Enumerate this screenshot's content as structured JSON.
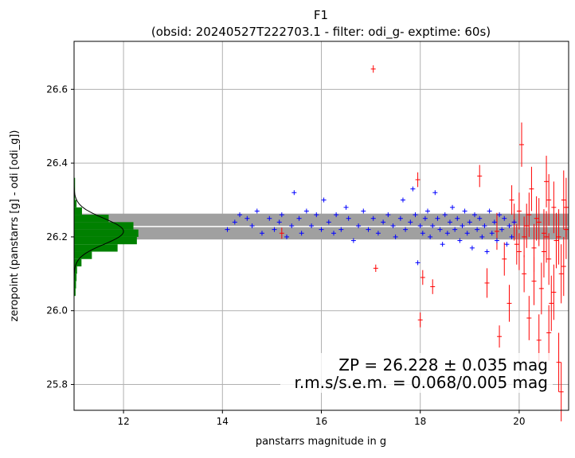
{
  "chart_data": {
    "type": "scatter",
    "title": "F1",
    "subtitle": "(obsid: 20240527T222703.1 - filter: odi_g- exptime: 60s)",
    "xlabel": "panstarrs magnitude in g",
    "ylabel": "zeropoint (panstarrs [g] - odi [odi_g])",
    "xlim": [
      11.0,
      21.0
    ],
    "ylim": [
      25.73,
      26.73
    ],
    "xticks": [
      12,
      14,
      16,
      18,
      20
    ],
    "yticks": [
      25.8,
      26.0,
      26.2,
      26.4,
      26.6
    ],
    "grid": true,
    "zeropoint": 26.228,
    "zeropoint_band": [
      26.193,
      26.263
    ],
    "annotation": {
      "line1": "ZP = 26.228 ± 0.035 mag",
      "line2": "r.m.s/s.e.m. = 0.068/0.005 mag"
    },
    "histogram": {
      "orientation": "horizontal",
      "color": "#008000",
      "note": "bar extent is given in x-axis magnitude units starting at the left edge",
      "bins": [
        {
          "y0": 26.04,
          "y1": 26.06,
          "extent": 11.03
        },
        {
          "y0": 26.06,
          "y1": 26.08,
          "extent": 11.04
        },
        {
          "y0": 26.08,
          "y1": 26.1,
          "extent": 11.05
        },
        {
          "y0": 26.1,
          "y1": 26.12,
          "extent": 11.06
        },
        {
          "y0": 26.12,
          "y1": 26.14,
          "extent": 11.15
        },
        {
          "y0": 26.14,
          "y1": 26.16,
          "extent": 11.36
        },
        {
          "y0": 26.16,
          "y1": 26.18,
          "extent": 11.88
        },
        {
          "y0": 26.18,
          "y1": 26.2,
          "extent": 12.27
        },
        {
          "y0": 26.2,
          "y1": 26.22,
          "extent": 12.3
        },
        {
          "y0": 26.22,
          "y1": 26.24,
          "extent": 12.2
        },
        {
          "y0": 26.24,
          "y1": 26.26,
          "extent": 11.7
        },
        {
          "y0": 26.26,
          "y1": 26.28,
          "extent": 11.16
        },
        {
          "y0": 26.28,
          "y1": 26.3,
          "extent": 11.05
        },
        {
          "y0": 26.3,
          "y1": 26.32,
          "extent": 11.02
        },
        {
          "y0": 26.32,
          "y1": 26.34,
          "extent": 11.02
        },
        {
          "y0": 26.34,
          "y1": 26.36,
          "extent": 11.02
        }
      ],
      "gaussian": {
        "mean": 26.215,
        "sigma": 0.035,
        "peak": 12.0
      }
    },
    "series": [
      {
        "color": "#0000ff",
        "marker": "plus",
        "points": [
          [
            14.1,
            26.22
          ],
          [
            14.25,
            26.24
          ],
          [
            14.35,
            26.26
          ],
          [
            14.5,
            26.25
          ],
          [
            14.6,
            26.23
          ],
          [
            14.7,
            26.27
          ],
          [
            14.8,
            26.21
          ],
          [
            14.95,
            26.25
          ],
          [
            15.05,
            26.22
          ],
          [
            15.15,
            26.24
          ],
          [
            15.2,
            26.26
          ],
          [
            15.3,
            26.2
          ],
          [
            15.4,
            26.23
          ],
          [
            15.45,
            26.32
          ],
          [
            15.55,
            26.25
          ],
          [
            15.6,
            26.21
          ],
          [
            15.7,
            26.27
          ],
          [
            15.8,
            26.23
          ],
          [
            15.9,
            26.26
          ],
          [
            16.0,
            26.22
          ],
          [
            16.05,
            26.3
          ],
          [
            16.15,
            26.24
          ],
          [
            16.25,
            26.21
          ],
          [
            16.3,
            26.26
          ],
          [
            16.4,
            26.22
          ],
          [
            16.5,
            26.28
          ],
          [
            16.55,
            26.25
          ],
          [
            16.65,
            26.19
          ],
          [
            16.75,
            26.23
          ],
          [
            16.85,
            26.27
          ],
          [
            16.95,
            26.22
          ],
          [
            17.05,
            26.25
          ],
          [
            17.15,
            26.21
          ],
          [
            17.25,
            26.24
          ],
          [
            17.35,
            26.26
          ],
          [
            17.45,
            26.23
          ],
          [
            17.5,
            26.2
          ],
          [
            17.6,
            26.25
          ],
          [
            17.65,
            26.3
          ],
          [
            17.7,
            26.22
          ],
          [
            17.8,
            26.24
          ],
          [
            17.85,
            26.33
          ],
          [
            17.9,
            26.26
          ],
          [
            17.95,
            26.13
          ],
          [
            18.0,
            26.23
          ],
          [
            18.05,
            26.21
          ],
          [
            18.1,
            26.25
          ],
          [
            18.15,
            26.27
          ],
          [
            18.2,
            26.2
          ],
          [
            18.25,
            26.23
          ],
          [
            18.3,
            26.32
          ],
          [
            18.35,
            26.25
          ],
          [
            18.4,
            26.22
          ],
          [
            18.45,
            26.18
          ],
          [
            18.5,
            26.26
          ],
          [
            18.55,
            26.21
          ],
          [
            18.6,
            26.24
          ],
          [
            18.65,
            26.28
          ],
          [
            18.7,
            26.22
          ],
          [
            18.75,
            26.25
          ],
          [
            18.8,
            26.19
          ],
          [
            18.85,
            26.23
          ],
          [
            18.9,
            26.27
          ],
          [
            18.95,
            26.21
          ],
          [
            19.0,
            26.24
          ],
          [
            19.05,
            26.17
          ],
          [
            19.1,
            26.26
          ],
          [
            19.15,
            26.22
          ],
          [
            19.2,
            26.25
          ],
          [
            19.25,
            26.2
          ],
          [
            19.3,
            26.23
          ],
          [
            19.35,
            26.16
          ],
          [
            19.4,
            26.27
          ],
          [
            19.45,
            26.21
          ],
          [
            19.5,
            26.24
          ],
          [
            19.55,
            26.19
          ],
          [
            19.6,
            26.26
          ],
          [
            19.65,
            26.22
          ],
          [
            19.7,
            26.25
          ],
          [
            19.75,
            26.18
          ],
          [
            19.8,
            26.23
          ],
          [
            19.85,
            26.2
          ],
          [
            19.9,
            26.24
          ]
        ]
      },
      {
        "color": "#ff0000",
        "marker": "plus-errorbar",
        "points": [
          [
            17.05,
            26.655,
            0.01
          ],
          [
            17.1,
            26.115,
            0.01
          ],
          [
            15.2,
            26.21,
            0.015
          ],
          [
            17.95,
            26.355,
            0.02
          ],
          [
            18.05,
            26.09,
            0.02
          ],
          [
            18.25,
            26.065,
            0.02
          ],
          [
            18.0,
            25.975,
            0.02
          ],
          [
            19.2,
            26.365,
            0.03
          ],
          [
            19.35,
            26.075,
            0.04
          ],
          [
            19.55,
            26.215,
            0.05
          ],
          [
            19.6,
            25.93,
            0.03
          ],
          [
            19.7,
            26.14,
            0.045
          ],
          [
            19.8,
            26.02,
            0.05
          ],
          [
            19.85,
            26.3,
            0.04
          ],
          [
            19.95,
            26.18,
            0.055
          ],
          [
            20.0,
            26.27,
            0.05
          ],
          [
            20.05,
            26.45,
            0.06
          ],
          [
            20.1,
            26.1,
            0.05
          ],
          [
            20.15,
            26.23,
            0.06
          ],
          [
            20.2,
            25.98,
            0.06
          ],
          [
            20.25,
            26.33,
            0.06
          ],
          [
            20.3,
            26.17,
            0.065
          ],
          [
            20.35,
            26.25,
            0.06
          ],
          [
            20.4,
            25.92,
            0.07
          ],
          [
            20.45,
            26.06,
            0.07
          ],
          [
            20.5,
            26.21,
            0.065
          ],
          [
            20.55,
            26.35,
            0.07
          ],
          [
            20.6,
            26.14,
            0.07
          ],
          [
            20.65,
            26.02,
            0.075
          ],
          [
            20.7,
            26.28,
            0.07
          ],
          [
            20.75,
            26.19,
            0.075
          ],
          [
            20.8,
            25.86,
            0.08
          ],
          [
            20.85,
            26.1,
            0.08
          ],
          [
            20.9,
            26.3,
            0.08
          ],
          [
            20.95,
            26.22,
            0.08
          ],
          [
            20.1,
            26.2,
            0.055
          ],
          [
            20.2,
            26.26,
            0.06
          ],
          [
            20.3,
            26.08,
            0.065
          ],
          [
            20.4,
            26.24,
            0.065
          ],
          [
            20.5,
            26.16,
            0.07
          ],
          [
            20.6,
            26.3,
            0.07
          ],
          [
            20.7,
            26.05,
            0.075
          ],
          [
            20.8,
            26.2,
            0.075
          ],
          [
            20.9,
            26.12,
            0.08
          ],
          [
            20.95,
            26.28,
            0.08
          ],
          [
            19.9,
            26.24,
            0.05
          ],
          [
            20.0,
            26.16,
            0.05
          ],
          [
            20.6,
            25.94,
            0.075
          ],
          [
            20.85,
            25.78,
            0.08
          ],
          [
            20.55,
            26.2,
            0.07
          ]
        ]
      }
    ]
  }
}
